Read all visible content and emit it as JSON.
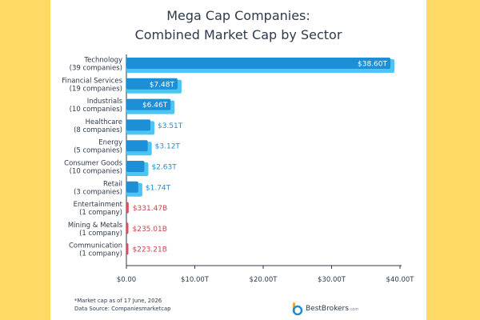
{
  "title_line1": "Mega Cap Companies:",
  "title_line2": "Combined Market Cap by Sector",
  "footnote_line1": "*Market cap as of 17 June, 2026",
  "footnote_line2": "Data Source: Companiesmarketcap",
  "logo": {
    "name": "BestBrokers",
    "suffix": ".com",
    "icon": "bestbrokers-logo-icon"
  },
  "colors": {
    "trillion_bar": "#1d8fd6",
    "trillion_shadow": "#4cc5f5",
    "trillion_label": "#1d8fd6",
    "billion_bar": "#d9505a",
    "billion_label": "#c9434d",
    "background": "#ffd966"
  },
  "chart_data": {
    "type": "bar",
    "orientation": "horizontal",
    "categories": [
      {
        "name": "Technology",
        "sub": "(39 companies)"
      },
      {
        "name": "Financial Services",
        "sub": "(19 companies)"
      },
      {
        "name": "Industrials",
        "sub": "(10 companies)"
      },
      {
        "name": "Healthcare",
        "sub": "(8 companies)"
      },
      {
        "name": "Energy",
        "sub": "(5 companies)"
      },
      {
        "name": "Consumer Goods",
        "sub": "(10 companies)"
      },
      {
        "name": "Retail",
        "sub": "(3 companies)"
      },
      {
        "name": "Entertainment",
        "sub": "(1 company)"
      },
      {
        "name": "Mining & Metals",
        "sub": "(1 company)"
      },
      {
        "name": "Communication",
        "sub": "(1 company)"
      }
    ],
    "values": [
      38.6,
      7.48,
      6.46,
      3.51,
      3.12,
      2.63,
      1.74,
      0.33147,
      0.23501,
      0.22321
    ],
    "labels": [
      "$38.60T",
      "$7.48T",
      "$6.46T",
      "$3.51T",
      "$3.12T",
      "$2.63T",
      "$1.74T",
      "$331.47B",
      "$235.01B",
      "$223.21B"
    ],
    "label_inside": [
      true,
      true,
      true,
      false,
      false,
      false,
      false,
      false,
      false,
      false
    ],
    "unit_group": [
      "T",
      "T",
      "T",
      "T",
      "T",
      "T",
      "T",
      "B",
      "B",
      "B"
    ],
    "xlim": [
      0,
      40
    ],
    "xticks": [
      "$0.00",
      "$10.00T",
      "$20.00T",
      "$30.00T",
      "$40.00T"
    ],
    "xtick_values": [
      0,
      10,
      20,
      30,
      40
    ],
    "grid": false
  }
}
